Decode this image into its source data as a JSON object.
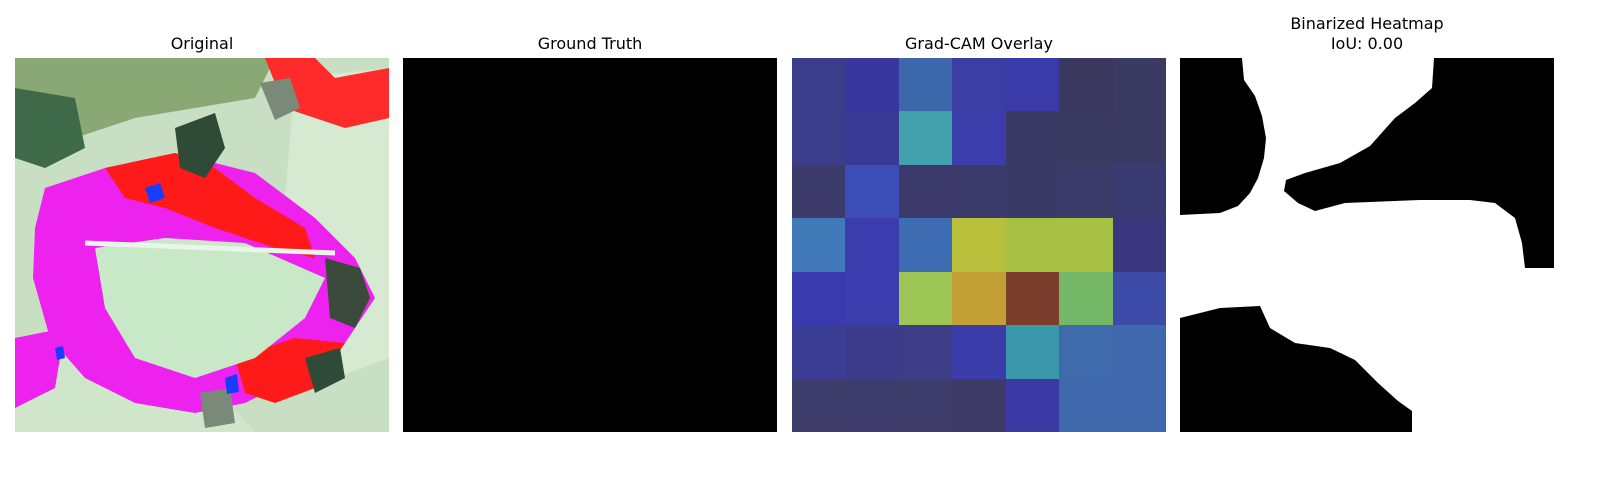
{
  "chart_data": [
    {
      "type": "image",
      "title": "Original"
    },
    {
      "type": "image",
      "title": "Ground Truth",
      "fill": "#000000"
    },
    {
      "type": "heatmap",
      "title": "Grad-CAM Overlay",
      "colors": [
        [
          "#3b3c8a",
          "#37379f",
          "#3c67aa",
          "#3b3fa5",
          "#3a3ba9",
          "#3b385f",
          "#3b3a62"
        ],
        [
          "#3b3d8b",
          "#393a95",
          "#43a0ad",
          "#3a3daa",
          "#3b3a64",
          "#3b3a62",
          "#3b3a62"
        ],
        [
          "#3d3b6a",
          "#3b4db7",
          "#3c3a6b",
          "#3c3a6a",
          "#3b3a66",
          "#3c3a68",
          "#3b3b74"
        ],
        [
          "#4279b8",
          "#3b3cad",
          "#3e6cb3",
          "#b8c03b",
          "#a8c043",
          "#a9c145",
          "#3a3680"
        ],
        [
          "#393aae",
          "#3b3cad",
          "#9ec656",
          "#c3a036",
          "#7b3d2c",
          "#74b766",
          "#3d4ca8"
        ],
        [
          "#3b3c94",
          "#3c3b8a",
          "#3c3c87",
          "#3b3ca9",
          "#3b98aa",
          "#3f6bad",
          "#4068ac"
        ],
        [
          "#3d3c6a",
          "#3e3c6d",
          "#3d3c6b",
          "#3d3a68",
          "#3b3aa5",
          "#4068ac",
          "#4068ac"
        ]
      ]
    },
    {
      "type": "image",
      "title": "Binarized Heatmap",
      "subtitle": "IoU: 0.00"
    }
  ]
}
